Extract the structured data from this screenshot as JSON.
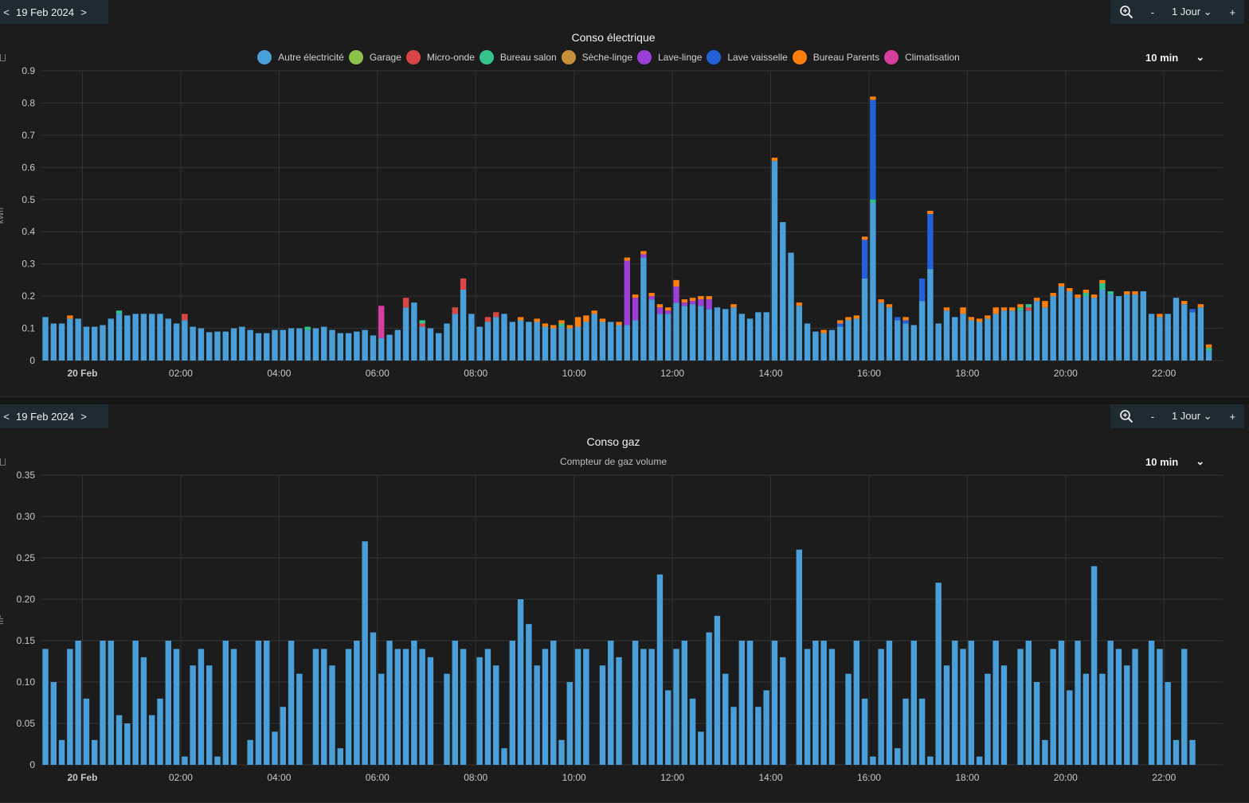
{
  "colors": {
    "autre": "#4a9fd8",
    "garage": "#8bc34a",
    "micro": "#d84646",
    "bureau_salon": "#33c48d",
    "seche": "#c98f3b",
    "lave_linge": "#9b3fd6",
    "lave_vaisselle": "#2461d8",
    "bureau_parents": "#ff7f0e",
    "clim": "#d63f9e",
    "gas": "#4a9fd8"
  },
  "panels": {
    "elec": {
      "date": "19 Feb 2024",
      "prev": "<",
      "next": ">",
      "zoom_minus": "-",
      "range": "1 Jour",
      "zoom_plus": "+",
      "title": "Conso électrique",
      "interval": "10 min",
      "ylabel": "kWh"
    },
    "gas": {
      "date": "19 Feb 2024",
      "prev": "<",
      "next": ">",
      "zoom_minus": "-",
      "range": "1 Jour",
      "zoom_plus": "+",
      "title": "Conso gaz",
      "subtitle": "Compteur de gaz volume",
      "interval": "10 min",
      "ylabel": "m³"
    }
  },
  "chart_data": [
    {
      "type": "bar",
      "stacked": true,
      "title": "Conso électrique",
      "ylabel": "kWh",
      "ylim": [
        0,
        0.9
      ],
      "yticks": [
        "0",
        "0.1",
        "0.2",
        "0.3",
        "0.4",
        "0.5",
        "0.6",
        "0.7",
        "0.8",
        "0.9"
      ],
      "xticks": [
        "20 Feb",
        "02:00",
        "04:00",
        "06:00",
        "08:00",
        "10:00",
        "12:00",
        "14:00",
        "16:00",
        "18:00",
        "20:00",
        "22:00"
      ],
      "x_start": "00:00",
      "interval_minutes": 10,
      "legend": [
        "Autre électricité",
        "Garage",
        "Micro-onde",
        "Bureau salon",
        "Sèche-linge",
        "Lave-linge",
        "Lave vaisselle",
        "Bureau Parents",
        "Climatisation"
      ],
      "base_series": "Autre électricité",
      "base_values": [
        0.135,
        0.115,
        0.115,
        0.13,
        0.13,
        0.105,
        0.105,
        0.11,
        0.13,
        0.145,
        0.14,
        0.145,
        0.145,
        0.145,
        0.145,
        0.13,
        0.115,
        0.125,
        0.105,
        0.1,
        0.088,
        0.09,
        0.09,
        0.1,
        0.105,
        0.095,
        0.085,
        0.085,
        0.095,
        0.095,
        0.1,
        0.1,
        0.095,
        0.1,
        0.105,
        0.095,
        0.085,
        0.085,
        0.09,
        0.095,
        0.078,
        0.07,
        0.08,
        0.095,
        0.165,
        0.18,
        0.105,
        0.1,
        0.085,
        0.115,
        0.145,
        0.22,
        0.145,
        0.105,
        0.12,
        0.135,
        0.145,
        0.12,
        0.125,
        0.12,
        0.12,
        0.105,
        0.1,
        0.105,
        0.1,
        0.105,
        0.12,
        0.145,
        0.12,
        0.12,
        0.11,
        0.11,
        0.125,
        0.32,
        0.19,
        0.145,
        0.145,
        0.18,
        0.17,
        0.175,
        0.17,
        0.16,
        0.165,
        0.16,
        0.165,
        0.145,
        0.13,
        0.15,
        0.15,
        0.62,
        0.43,
        0.335,
        0.17,
        0.115,
        0.09,
        0.085,
        0.095,
        0.105,
        0.125,
        0.13,
        0.255,
        0.49,
        0.18,
        0.165,
        0.125,
        0.115,
        0.11,
        0.185,
        0.285,
        0.115,
        0.155,
        0.135,
        0.145,
        0.125,
        0.12,
        0.13,
        0.145,
        0.155,
        0.155,
        0.155,
        0.155,
        0.185,
        0.165,
        0.2,
        0.23,
        0.215,
        0.195,
        0.2,
        0.195,
        0.22,
        0.205,
        0.2,
        0.205,
        0.205,
        0.215,
        0.145,
        0.135,
        0.145,
        0.195,
        0.175,
        0.15,
        0.165,
        0.03
      ],
      "extras": [
        {
          "i": 3,
          "name": "Bureau Parents",
          "value": 0.01
        },
        {
          "i": 9,
          "name": "Bureau salon",
          "value": 0.01
        },
        {
          "i": 17,
          "name": "Micro-onde",
          "value": 0.02
        },
        {
          "i": 32,
          "name": "Bureau salon",
          "value": 0.01
        },
        {
          "i": 41,
          "name": "Climatisation",
          "value": 0.1
        },
        {
          "i": 44,
          "name": "Micro-onde",
          "value": 0.03
        },
        {
          "i": 46,
          "name": "Micro-onde",
          "value": 0.01
        },
        {
          "i": 46,
          "name": "Bureau salon",
          "value": 0.01
        },
        {
          "i": 50,
          "name": "Micro-onde",
          "value": 0.02
        },
        {
          "i": 51,
          "name": "Micro-onde",
          "value": 0.035
        },
        {
          "i": 54,
          "name": "Micro-onde",
          "value": 0.015
        },
        {
          "i": 55,
          "name": "Micro-onde",
          "value": 0.015
        },
        {
          "i": 58,
          "name": "Bureau Parents",
          "value": 0.01
        },
        {
          "i": 60,
          "name": "Bureau Parents",
          "value": 0.01
        },
        {
          "i": 61,
          "name": "Bureau Parents",
          "value": 0.01
        },
        {
          "i": 62,
          "name": "Bureau Parents",
          "value": 0.01
        },
        {
          "i": 63,
          "name": "Bureau salon",
          "value": 0.01
        },
        {
          "i": 63,
          "name": "Bureau Parents",
          "value": 0.01
        },
        {
          "i": 64,
          "name": "Bureau Parents",
          "value": 0.01
        },
        {
          "i": 65,
          "name": "Bureau Parents",
          "value": 0.03
        },
        {
          "i": 66,
          "name": "Bureau Parents",
          "value": 0.02
        },
        {
          "i": 67,
          "name": "Bureau Parents",
          "value": 0.01
        },
        {
          "i": 68,
          "name": "Bureau Parents",
          "value": 0.01
        },
        {
          "i": 70,
          "name": "Bureau Parents",
          "value": 0.01
        },
        {
          "i": 71,
          "name": "Lave-linge",
          "value": 0.2
        },
        {
          "i": 71,
          "name": "Bureau Parents",
          "value": 0.01
        },
        {
          "i": 72,
          "name": "Lave-linge",
          "value": 0.07
        },
        {
          "i": 72,
          "name": "Bureau Parents",
          "value": 0.01
        },
        {
          "i": 73,
          "name": "Lave-linge",
          "value": 0.01
        },
        {
          "i": 73,
          "name": "Bureau Parents",
          "value": 0.01
        },
        {
          "i": 74,
          "name": "Lave-linge",
          "value": 0.01
        },
        {
          "i": 74,
          "name": "Bureau Parents",
          "value": 0.01
        },
        {
          "i": 75,
          "name": "Lave-linge",
          "value": 0.02
        },
        {
          "i": 75,
          "name": "Bureau Parents",
          "value": 0.01
        },
        {
          "i": 76,
          "name": "Lave-linge",
          "value": 0.01
        },
        {
          "i": 76,
          "name": "Bureau Parents",
          "value": 0.01
        },
        {
          "i": 77,
          "name": "Lave-linge",
          "value": 0.05
        },
        {
          "i": 77,
          "name": "Bureau Parents",
          "value": 0.02
        },
        {
          "i": 78,
          "name": "Lave-linge",
          "value": 0.01
        },
        {
          "i": 78,
          "name": "Bureau Parents",
          "value": 0.01
        },
        {
          "i": 79,
          "name": "Lave-linge",
          "value": 0.01
        },
        {
          "i": 79,
          "name": "Bureau Parents",
          "value": 0.01
        },
        {
          "i": 80,
          "name": "Lave-linge",
          "value": 0.02
        },
        {
          "i": 80,
          "name": "Bureau Parents",
          "value": 0.01
        },
        {
          "i": 81,
          "name": "Lave-linge",
          "value": 0.03
        },
        {
          "i": 81,
          "name": "Bureau Parents",
          "value": 0.01
        },
        {
          "i": 84,
          "name": "Bureau Parents",
          "value": 0.01
        },
        {
          "i": 89,
          "name": "Bureau Parents",
          "value": 0.01
        },
        {
          "i": 92,
          "name": "Bureau Parents",
          "value": 0.01
        },
        {
          "i": 95,
          "name": "Bureau Parents",
          "value": 0.01
        },
        {
          "i": 97,
          "name": "Lave vaisselle",
          "value": 0.01
        },
        {
          "i": 97,
          "name": "Bureau Parents",
          "value": 0.01
        },
        {
          "i": 98,
          "name": "Bureau Parents",
          "value": 0.01
        },
        {
          "i": 99,
          "name": "Bureau Parents",
          "value": 0.01
        },
        {
          "i": 100,
          "name": "Lave vaisselle",
          "value": 0.12
        },
        {
          "i": 100,
          "name": "Bureau Parents",
          "value": 0.01
        },
        {
          "i": 101,
          "name": "Bureau salon",
          "value": 0.01
        },
        {
          "i": 101,
          "name": "Lave vaisselle",
          "value": 0.31
        },
        {
          "i": 101,
          "name": "Bureau Parents",
          "value": 0.01
        },
        {
          "i": 102,
          "name": "Bureau Parents",
          "value": 0.01
        },
        {
          "i": 103,
          "name": "Bureau Parents",
          "value": 0.01
        },
        {
          "i": 104,
          "name": "Lave vaisselle",
          "value": 0.01
        },
        {
          "i": 105,
          "name": "Lave vaisselle",
          "value": 0.01
        },
        {
          "i": 105,
          "name": "Bureau Parents",
          "value": 0.01
        },
        {
          "i": 107,
          "name": "Lave vaisselle",
          "value": 0.07
        },
        {
          "i": 108,
          "name": "Lave vaisselle",
          "value": 0.17
        },
        {
          "i": 108,
          "name": "Bureau Parents",
          "value": 0.01
        },
        {
          "i": 110,
          "name": "Bureau Parents",
          "value": 0.01
        },
        {
          "i": 112,
          "name": "Bureau Parents",
          "value": 0.02
        },
        {
          "i": 113,
          "name": "Bureau Parents",
          "value": 0.01
        },
        {
          "i": 114,
          "name": "Bureau Parents",
          "value": 0.01
        },
        {
          "i": 115,
          "name": "Bureau Parents",
          "value": 0.01
        },
        {
          "i": 116,
          "name": "Bureau Parents",
          "value": 0.02
        },
        {
          "i": 117,
          "name": "Bureau Parents",
          "value": 0.01
        },
        {
          "i": 118,
          "name": "Bureau Parents",
          "value": 0.01
        },
        {
          "i": 119,
          "name": "Bureau salon",
          "value": 0.01
        },
        {
          "i": 119,
          "name": "Bureau Parents",
          "value": 0.01
        },
        {
          "i": 120,
          "name": "Micro-onde",
          "value": 0.01
        },
        {
          "i": 120,
          "name": "Bureau salon",
          "value": 0.01
        },
        {
          "i": 121,
          "name": "Bureau Parents",
          "value": 0.01
        },
        {
          "i": 122,
          "name": "Bureau Parents",
          "value": 0.02
        },
        {
          "i": 123,
          "name": "Bureau Parents",
          "value": 0.01
        },
        {
          "i": 124,
          "name": "Bureau Parents",
          "value": 0.01
        },
        {
          "i": 125,
          "name": "Bureau Parents",
          "value": 0.01
        },
        {
          "i": 126,
          "name": "Bureau Parents",
          "value": 0.01
        },
        {
          "i": 127,
          "name": "Bureau salon",
          "value": 0.01
        },
        {
          "i": 127,
          "name": "Bureau Parents",
          "value": 0.01
        },
        {
          "i": 128,
          "name": "Bureau Parents",
          "value": 0.01
        },
        {
          "i": 129,
          "name": "Bureau salon",
          "value": 0.02
        },
        {
          "i": 129,
          "name": "Bureau Parents",
          "value": 0.01
        },
        {
          "i": 130,
          "name": "Bureau salon",
          "value": 0.01
        },
        {
          "i": 132,
          "name": "Bureau Parents",
          "value": 0.01
        },
        {
          "i": 133,
          "name": "Bureau Parents",
          "value": 0.01
        },
        {
          "i": 136,
          "name": "Bureau Parents",
          "value": 0.01
        },
        {
          "i": 139,
          "name": "Bureau Parents",
          "value": 0.01
        },
        {
          "i": 140,
          "name": "Lave vaisselle",
          "value": 0.01
        },
        {
          "i": 141,
          "name": "Bureau Parents",
          "value": 0.01
        },
        {
          "i": 142,
          "name": "Bureau salon",
          "value": 0.01
        },
        {
          "i": 142,
          "name": "Bureau Parents",
          "value": 0.01
        }
      ]
    },
    {
      "type": "bar",
      "title": "Conso gaz",
      "subtitle": "Compteur de gaz volume",
      "ylabel": "m³",
      "ylim": [
        0,
        0.35
      ],
      "yticks": [
        "0",
        "0.05",
        "0.10",
        "0.15",
        "0.20",
        "0.25",
        "0.30",
        "0.35"
      ],
      "xticks": [
        "20 Feb",
        "02:00",
        "04:00",
        "06:00",
        "08:00",
        "10:00",
        "12:00",
        "14:00",
        "16:00",
        "18:00",
        "20:00",
        "22:00"
      ],
      "x_start": "00:00",
      "interval_minutes": 10,
      "series": [
        {
          "name": "Compteur de gaz volume",
          "values": [
            0.14,
            0.1,
            0.03,
            0.14,
            0.15,
            0.08,
            0.03,
            0.15,
            0.15,
            0.06,
            0.05,
            0.15,
            0.13,
            0.06,
            0.08,
            0.15,
            0.14,
            0.01,
            0.12,
            0.14,
            0.12,
            0.01,
            0.15,
            0.14,
            0.0,
            0.03,
            0.15,
            0.15,
            0.04,
            0.07,
            0.15,
            0.11,
            0.0,
            0.14,
            0.14,
            0.12,
            0.02,
            0.14,
            0.15,
            0.27,
            0.16,
            0.11,
            0.15,
            0.14,
            0.14,
            0.15,
            0.14,
            0.13,
            0.0,
            0.11,
            0.15,
            0.14,
            0.0,
            0.13,
            0.14,
            0.12,
            0.02,
            0.15,
            0.2,
            0.17,
            0.12,
            0.14,
            0.15,
            0.03,
            0.1,
            0.14,
            0.14,
            0.0,
            0.12,
            0.15,
            0.13,
            0.0,
            0.15,
            0.14,
            0.14,
            0.23,
            0.09,
            0.14,
            0.15,
            0.08,
            0.04,
            0.16,
            0.18,
            0.11,
            0.07,
            0.15,
            0.15,
            0.07,
            0.09,
            0.15,
            0.13,
            0.0,
            0.26,
            0.14,
            0.15,
            0.15,
            0.14,
            0.0,
            0.11,
            0.15,
            0.08,
            0.01,
            0.14,
            0.15,
            0.02,
            0.08,
            0.15,
            0.08,
            0.01,
            0.22,
            0.12,
            0.15,
            0.14,
            0.15,
            0.01,
            0.11,
            0.15,
            0.12,
            0.0,
            0.14,
            0.15,
            0.1,
            0.03,
            0.14,
            0.15,
            0.09,
            0.15,
            0.11,
            0.24,
            0.11,
            0.15,
            0.14,
            0.12,
            0.14,
            0.0,
            0.15,
            0.14,
            0.1,
            0.03,
            0.14,
            0.03
          ]
        }
      ]
    }
  ]
}
